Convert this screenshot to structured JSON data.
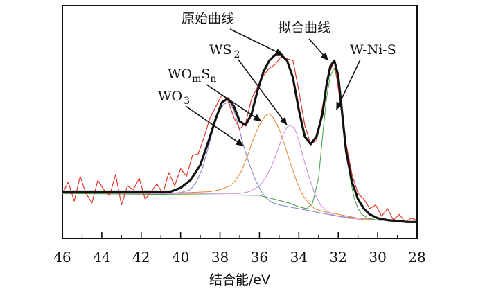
{
  "chart_data": {
    "type": "line",
    "title": "",
    "xlabel": "结合能/eV",
    "ylabel": "",
    "xlim": [
      46,
      28
    ],
    "ylim": [
      0,
      1
    ],
    "x_reversed": true,
    "x_ticks": [
      46,
      44,
      42,
      40,
      38,
      36,
      34,
      32,
      30,
      28
    ],
    "grid": false,
    "series": [
      {
        "name": "原始曲线",
        "color": "#e0281c",
        "x": [
          46,
          45.7,
          45.4,
          45.1,
          44.8,
          44.5,
          44.2,
          43.9,
          43.6,
          43.3,
          43.0,
          42.7,
          42.4,
          42.1,
          41.8,
          41.5,
          41.2,
          40.9,
          40.6,
          40.3,
          40.0,
          39.7,
          39.4,
          39.1,
          38.8,
          38.5,
          38.2,
          37.9,
          37.6,
          37.3,
          37.0,
          36.7,
          36.4,
          36.1,
          35.8,
          35.5,
          35.2,
          34.9,
          34.6,
          34.3,
          34.0,
          33.7,
          33.4,
          33.1,
          32.8,
          32.5,
          32.2,
          31.9,
          31.6,
          31.3,
          31.0,
          30.7,
          30.4,
          30.1,
          29.8,
          29.5,
          29.2,
          28.9,
          28.6,
          28.3,
          28.0
        ],
        "y": [
          0.2,
          0.26,
          0.16,
          0.29,
          0.2,
          0.15,
          0.27,
          0.22,
          0.19,
          0.3,
          0.14,
          0.24,
          0.22,
          0.28,
          0.17,
          0.21,
          0.25,
          0.2,
          0.31,
          0.24,
          0.33,
          0.29,
          0.4,
          0.41,
          0.5,
          0.6,
          0.66,
          0.72,
          0.69,
          0.6,
          0.54,
          0.57,
          0.7,
          0.76,
          0.82,
          0.86,
          0.88,
          0.92,
          0.91,
          0.9,
          0.74,
          0.56,
          0.46,
          0.48,
          0.66,
          0.82,
          0.9,
          0.68,
          0.46,
          0.3,
          0.2,
          0.17,
          0.12,
          0.14,
          0.08,
          0.12,
          0.06,
          0.09,
          0.05,
          0.07,
          0.06
        ]
      },
      {
        "name": "拟合曲线",
        "color": "#111111",
        "x": [
          46,
          44,
          42,
          40.5,
          40,
          39.5,
          39,
          38.6,
          38.2,
          37.9,
          37.6,
          37.3,
          37.0,
          36.7,
          36.4,
          36.1,
          35.8,
          35.5,
          35.2,
          34.9,
          34.6,
          34.3,
          34.0,
          33.7,
          33.4,
          33.1,
          32.8,
          32.6,
          32.4,
          32.2,
          32.0,
          31.8,
          31.6,
          31.3,
          31.0,
          30.7,
          30.4,
          30.0,
          29.5,
          29.0,
          28.5,
          28.0
        ],
        "y": [
          0.21,
          0.21,
          0.21,
          0.21,
          0.23,
          0.27,
          0.35,
          0.47,
          0.6,
          0.68,
          0.7,
          0.66,
          0.58,
          0.56,
          0.62,
          0.74,
          0.84,
          0.9,
          0.93,
          0.93,
          0.9,
          0.81,
          0.64,
          0.5,
          0.46,
          0.5,
          0.62,
          0.77,
          0.87,
          0.9,
          0.82,
          0.62,
          0.42,
          0.26,
          0.17,
          0.12,
          0.09,
          0.07,
          0.06,
          0.055,
          0.05,
          0.05
        ]
      },
      {
        "name": "WO3",
        "color": "#7b7fc4",
        "x": [
          46,
          44,
          42,
          40.5,
          40,
          39.5,
          39.2,
          38.9,
          38.6,
          38.3,
          38.0,
          37.8,
          37.6,
          37.4,
          37.2,
          37.0,
          36.8,
          36.5,
          36.2,
          35.9,
          35.6,
          35.3,
          35.0,
          34.5,
          34.0,
          33.0,
          32.0,
          31.0,
          30.0,
          29.0,
          28.0
        ],
        "y": [
          0.2,
          0.2,
          0.2,
          0.2,
          0.205,
          0.22,
          0.26,
          0.33,
          0.44,
          0.56,
          0.64,
          0.67,
          0.68,
          0.66,
          0.61,
          0.53,
          0.45,
          0.35,
          0.27,
          0.21,
          0.17,
          0.15,
          0.14,
          0.13,
          0.12,
          0.1,
          0.08,
          0.07,
          0.06,
          0.055,
          0.05
        ]
      },
      {
        "name": "WOmSn",
        "color": "#e8842a",
        "x": [
          46,
          42,
          39.5,
          38.5,
          38.0,
          37.5,
          37.2,
          36.9,
          36.6,
          36.3,
          36.0,
          35.7,
          35.5,
          35.3,
          35.0,
          34.7,
          34.4,
          34.1,
          33.8,
          33.5,
          33.2,
          32.9,
          32.5,
          32.0,
          31.0,
          30.0,
          29.0,
          28.0
        ],
        "y": [
          0.2,
          0.2,
          0.205,
          0.21,
          0.22,
          0.24,
          0.27,
          0.32,
          0.4,
          0.49,
          0.56,
          0.61,
          0.62,
          0.6,
          0.54,
          0.45,
          0.35,
          0.26,
          0.19,
          0.15,
          0.12,
          0.11,
          0.1,
          0.09,
          0.07,
          0.06,
          0.055,
          0.05
        ]
      },
      {
        "name": "WS2",
        "color": "#c98bd6",
        "x": [
          46,
          40,
          38.0,
          37.0,
          36.5,
          36.0,
          35.7,
          35.4,
          35.1,
          34.8,
          34.6,
          34.4,
          34.2,
          34.0,
          33.8,
          33.5,
          33.2,
          32.9,
          32.6,
          32.3,
          32.0,
          31.5,
          31.0,
          30.0,
          29.0,
          28.0
        ],
        "y": [
          0.2,
          0.2,
          0.2,
          0.2,
          0.21,
          0.24,
          0.28,
          0.34,
          0.42,
          0.51,
          0.55,
          0.56,
          0.54,
          0.48,
          0.4,
          0.29,
          0.2,
          0.14,
          0.11,
          0.09,
          0.08,
          0.07,
          0.065,
          0.06,
          0.055,
          0.05
        ]
      },
      {
        "name": "W-Ni-S",
        "color": "#3f9a3f",
        "x": [
          46,
          36,
          34.5,
          34.0,
          33.6,
          33.3,
          33.0,
          32.8,
          32.6,
          32.4,
          32.2,
          32.0,
          31.8,
          31.6,
          31.4,
          31.2,
          31.0,
          30.8,
          30.5,
          30.0,
          29.0,
          28.0
        ],
        "y": [
          0.2,
          0.19,
          0.15,
          0.13,
          0.12,
          0.15,
          0.28,
          0.5,
          0.7,
          0.82,
          0.86,
          0.78,
          0.6,
          0.42,
          0.28,
          0.18,
          0.12,
          0.09,
          0.07,
          0.06,
          0.055,
          0.05
        ]
      }
    ],
    "annotations": [
      {
        "name": "原始曲线",
        "target": [
          34.8,
          0.93
        ]
      },
      {
        "name": "拟合曲线",
        "target": [
          32.5,
          0.9
        ]
      },
      {
        "name": "WS2",
        "target": [
          34.6,
          0.56
        ]
      },
      {
        "name": "W-Ni-S",
        "target": [
          32.1,
          0.64
        ]
      },
      {
        "name": "WOmSn",
        "target": [
          35.9,
          0.58
        ]
      },
      {
        "name": "WO3",
        "target": [
          36.8,
          0.45
        ]
      }
    ]
  },
  "labels": {
    "raw_curve": "原始曲线",
    "fitted_curve": "拟合曲线",
    "ws2_main": "WS",
    "ws2_sub": "2",
    "wnis": "W-Ni-S",
    "womsn_wo": "WO",
    "womsn_m": "m",
    "womsn_s": "S",
    "womsn_n": "n",
    "wo3_main": "WO",
    "wo3_sub": "3"
  }
}
